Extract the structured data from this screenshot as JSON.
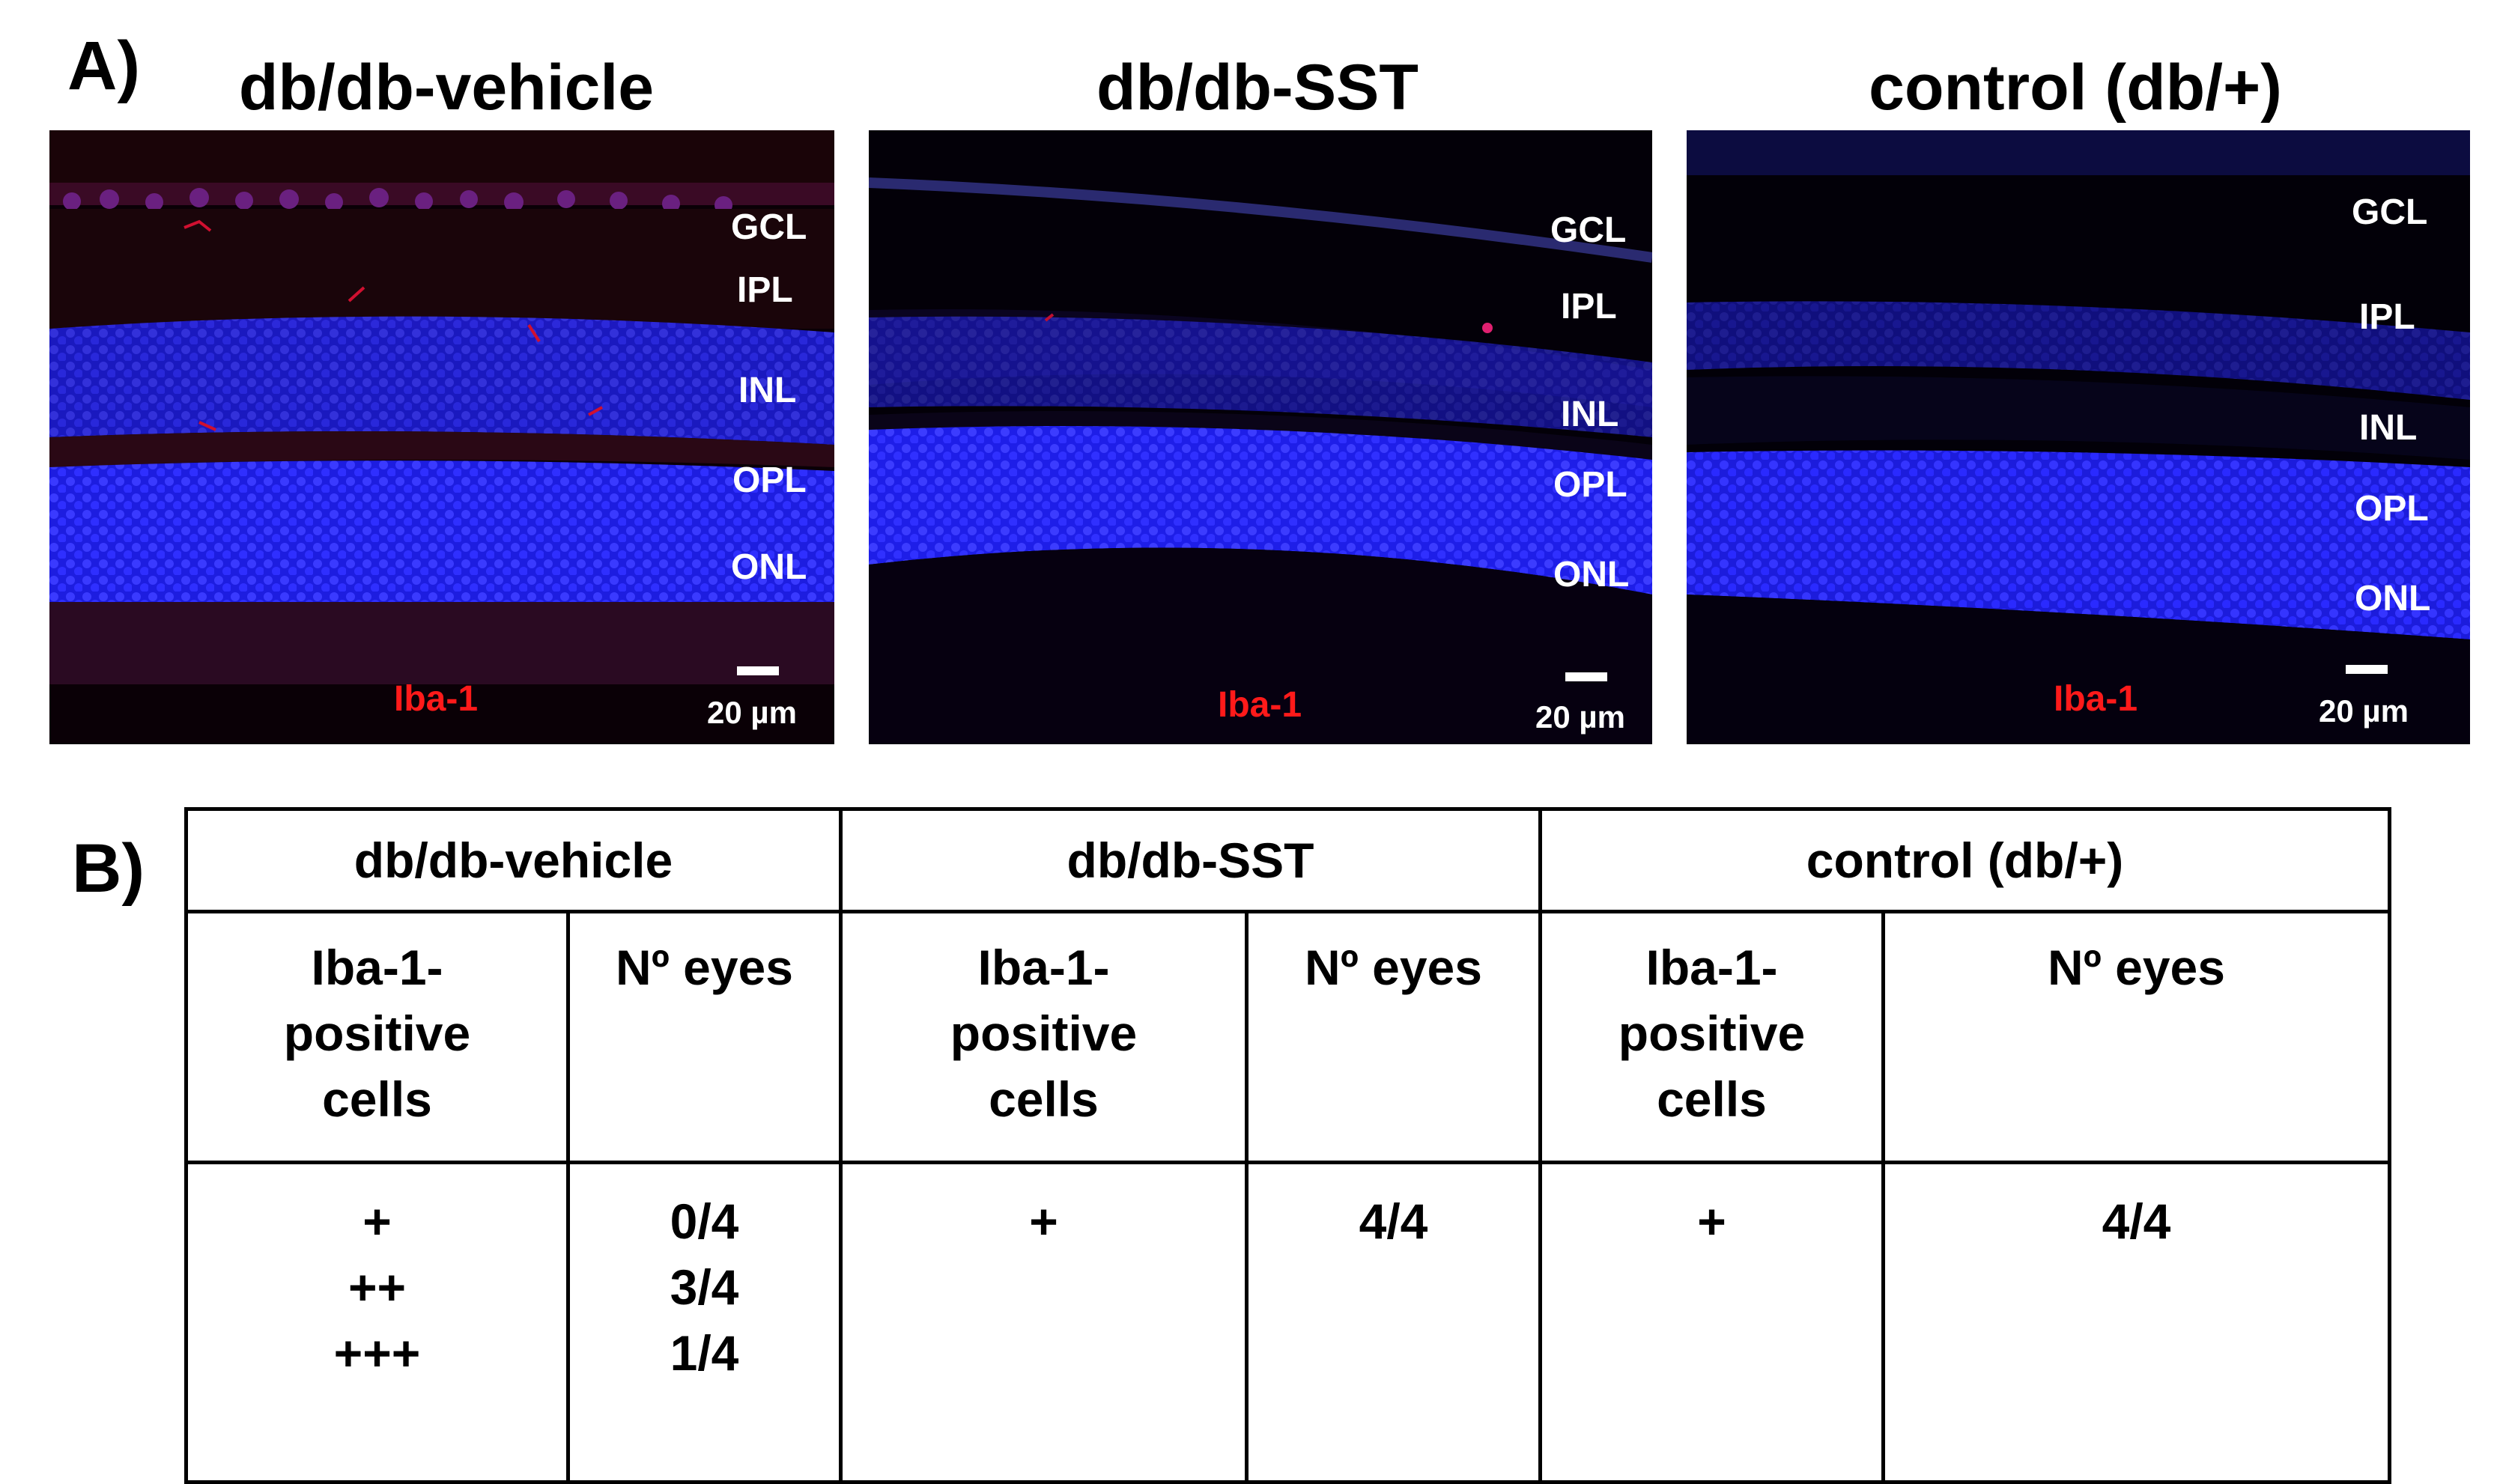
{
  "panel_a": {
    "letter": "A)",
    "images": [
      {
        "title": "db/db-vehicle",
        "layers": [
          "GCL",
          "IPL",
          "INL",
          "OPL",
          "ONL"
        ],
        "marker": "Iba-1",
        "scale": "20 µm"
      },
      {
        "title": "db/db-SST",
        "layers": [
          "GCL",
          "IPL",
          "INL",
          "OPL",
          "ONL"
        ],
        "marker": "Iba-1",
        "scale": "20 µm"
      },
      {
        "title": "control (db/+)",
        "layers": [
          "GCL",
          "IPL",
          "INL",
          "OPL",
          "ONL"
        ],
        "marker": "Iba-1",
        "scale": "20 µm"
      }
    ]
  },
  "panel_b": {
    "letter": "B)",
    "groups": [
      "db/db-vehicle",
      "db/db-SST",
      "control (db/+)"
    ],
    "col_headers": {
      "cells": [
        "Iba-1-",
        "positive",
        "cells"
      ],
      "eyes": "Nº eyes"
    },
    "rows": {
      "vehicle": {
        "cells": [
          "+",
          "++",
          "+++"
        ],
        "eyes": [
          "0/4",
          "3/4",
          "1/4"
        ]
      },
      "sst": {
        "cells": [
          "+"
        ],
        "eyes": [
          "4/4"
        ]
      },
      "control": {
        "cells": [
          "+"
        ],
        "eyes": [
          "4/4"
        ]
      }
    }
  },
  "colors": {
    "nuclei": "#2323ff",
    "iba1": "#ff1a1a",
    "background": "#000000"
  }
}
